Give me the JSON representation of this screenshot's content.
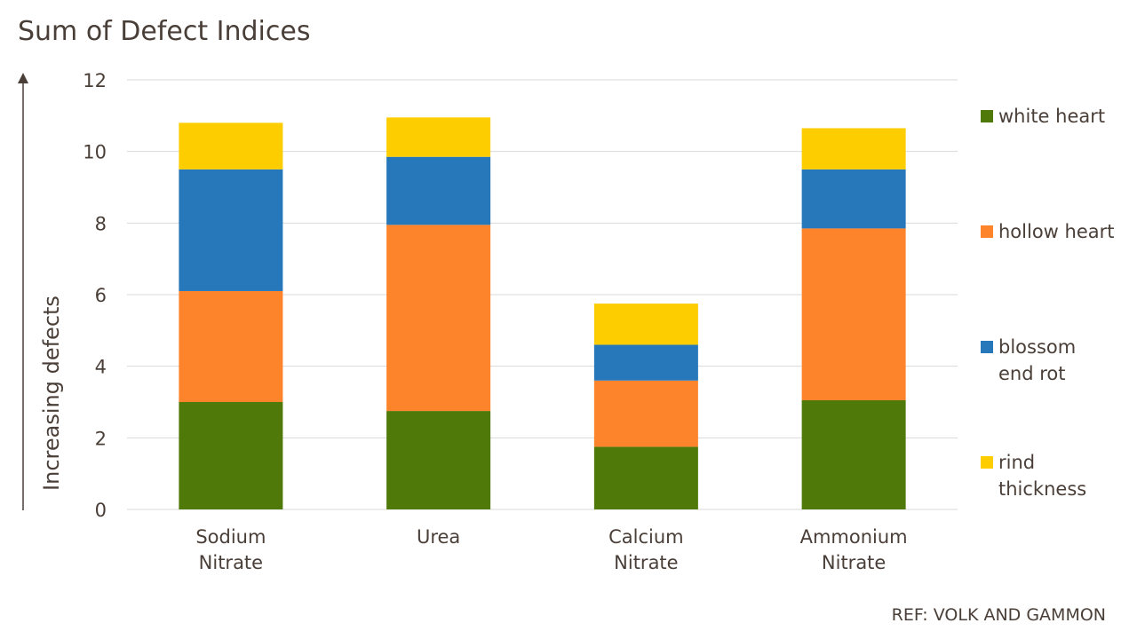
{
  "chart_data": {
    "type": "bar",
    "stacked": true,
    "title": "Sum of Defect Indices",
    "ylabel": "Increasing defects",
    "xlabel": "",
    "ylim": [
      0,
      12
    ],
    "yticks": [
      0,
      2,
      4,
      6,
      8,
      10,
      12
    ],
    "grid": true,
    "legend_position": "right",
    "categories": [
      [
        "Sodium",
        "Nitrate"
      ],
      [
        "Urea"
      ],
      [
        "Calcium",
        "Nitrate"
      ],
      [
        "Ammonium",
        "Nitrate"
      ]
    ],
    "series": [
      {
        "name": [
          "white heart"
        ],
        "color": "#4f7a0a",
        "values": [
          3.0,
          2.75,
          1.75,
          3.05
        ]
      },
      {
        "name": [
          "hollow heart"
        ],
        "color": "#fd842b",
        "values": [
          3.1,
          5.2,
          1.85,
          4.8
        ]
      },
      {
        "name": [
          "blossom",
          "end rot"
        ],
        "color": "#2778ba",
        "values": [
          3.4,
          1.9,
          1.0,
          1.65
        ]
      },
      {
        "name": [
          "rind",
          "thickness"
        ],
        "color": "#fdcd00",
        "values": [
          1.3,
          1.1,
          1.15,
          1.15
        ]
      }
    ],
    "reference": "REF: VOLK AND GAMMON"
  }
}
